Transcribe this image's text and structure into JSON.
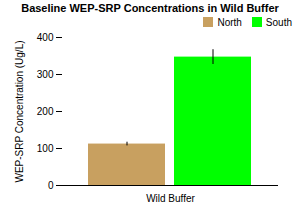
{
  "chart_data": {
    "type": "bar",
    "title": "Baseline WEP-SRP Concentrations in Wild Buffer",
    "ylabel": "WEP-SRP Concentration (Ug/L)",
    "categories": [
      "Wild Buffer"
    ],
    "series": [
      {
        "name": "North",
        "color": "#C8A060",
        "values": [
          112
        ],
        "errors": [
          5
        ]
      },
      {
        "name": "South",
        "color": "#00FF00",
        "values": [
          347
        ],
        "errors": [
          20
        ]
      }
    ],
    "ylim": [
      0,
      400
    ],
    "yticks": [
      0,
      100,
      200,
      300,
      400
    ],
    "grid": false,
    "legend": "upper right"
  }
}
